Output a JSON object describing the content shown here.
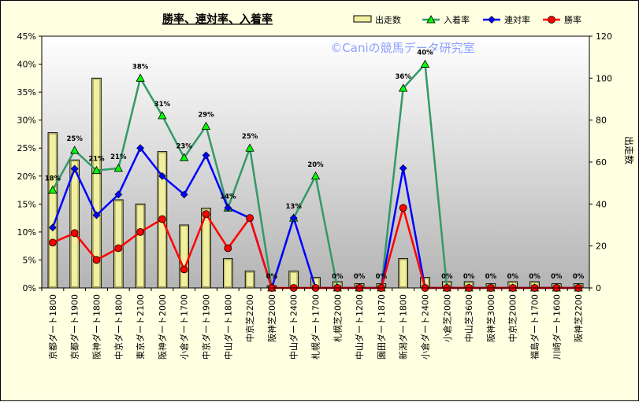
{
  "chart_data": {
    "type": "bar+line",
    "title": "勝率、連対率、入着率",
    "watermark": "©Caniの競馬データ研究室",
    "y2label": "出走数",
    "y1_ticks": [
      "0%",
      "5%",
      "10%",
      "15%",
      "20%",
      "25%",
      "30%",
      "35%",
      "40%",
      "45%"
    ],
    "y2_ticks": [
      "0",
      "20",
      "40",
      "60",
      "80",
      "100",
      "120"
    ],
    "ylim": [
      0,
      45
    ],
    "y2lim": [
      0,
      120
    ],
    "legend_position": "top-right",
    "grid": false,
    "categories": [
      "京都ダート1800",
      "京都ダート1900",
      "阪神ダート1800",
      "中京ダート1800",
      "東京ダート2100",
      "阪神ダート2000",
      "小倉ダート1700",
      "中京ダート1900",
      "中山ダート1800",
      "中京芝2200",
      "阪神芝2000",
      "中山ダート2400",
      "札幌ダート1700",
      "札幌芝2000",
      "中山ダート1200",
      "園田ダート1870",
      "新潟ダート1800",
      "小倉ダート2400",
      "小倉芝2000",
      "中山芝3600",
      "阪神芝3000",
      "中京芝2000",
      "福島ダート1700",
      "川崎ダート1600",
      "阪神芝2200"
    ],
    "series": [
      {
        "name": "出走数",
        "kind": "bar",
        "axis": "y2",
        "color": "#f0f0a0",
        "values": [
          74,
          61,
          100,
          42,
          40,
          65,
          30,
          38,
          14,
          8,
          1,
          8,
          5,
          3,
          2,
          2,
          14,
          5,
          3,
          3,
          2,
          3,
          3,
          2,
          2
        ]
      },
      {
        "name": "入着率",
        "kind": "line",
        "axis": "y1",
        "color": "#339966",
        "values": [
          17.5,
          24.6,
          21.0,
          21.4,
          37.5,
          30.8,
          23.3,
          28.9,
          14.3,
          25.0,
          0,
          12.5,
          20.0,
          0,
          0,
          0,
          35.7,
          40.0,
          0,
          0,
          0,
          0,
          0,
          0,
          0
        ]
      },
      {
        "name": "連対率",
        "kind": "line",
        "axis": "y1",
        "color": "#0000ff",
        "values": [
          10.8,
          21.3,
          13.0,
          16.7,
          25.0,
          20.0,
          16.7,
          23.7,
          14.3,
          12.5,
          0,
          12.5,
          0,
          0,
          0,
          0,
          21.4,
          0,
          0,
          0,
          0,
          0,
          0,
          0,
          0
        ]
      },
      {
        "name": "勝率",
        "kind": "line",
        "axis": "y1",
        "color": "#ff0000",
        "values": [
          8.1,
          9.8,
          5.0,
          7.1,
          10.0,
          12.3,
          3.3,
          13.2,
          7.1,
          12.5,
          0,
          0,
          0,
          0,
          0,
          0,
          14.3,
          0,
          0,
          0,
          0,
          0,
          0,
          0,
          0
        ]
      }
    ],
    "data_labels": [
      "18%",
      "25%",
      "21%",
      "21%",
      "38%",
      "31%",
      "23%",
      "29%",
      "14%",
      "25%",
      "0%",
      "13%",
      "20%",
      "0%",
      "0%",
      "0%",
      "36%",
      "40%",
      "0%",
      "0%",
      "0%",
      "0%",
      "0%",
      "0%",
      "0%"
    ]
  }
}
